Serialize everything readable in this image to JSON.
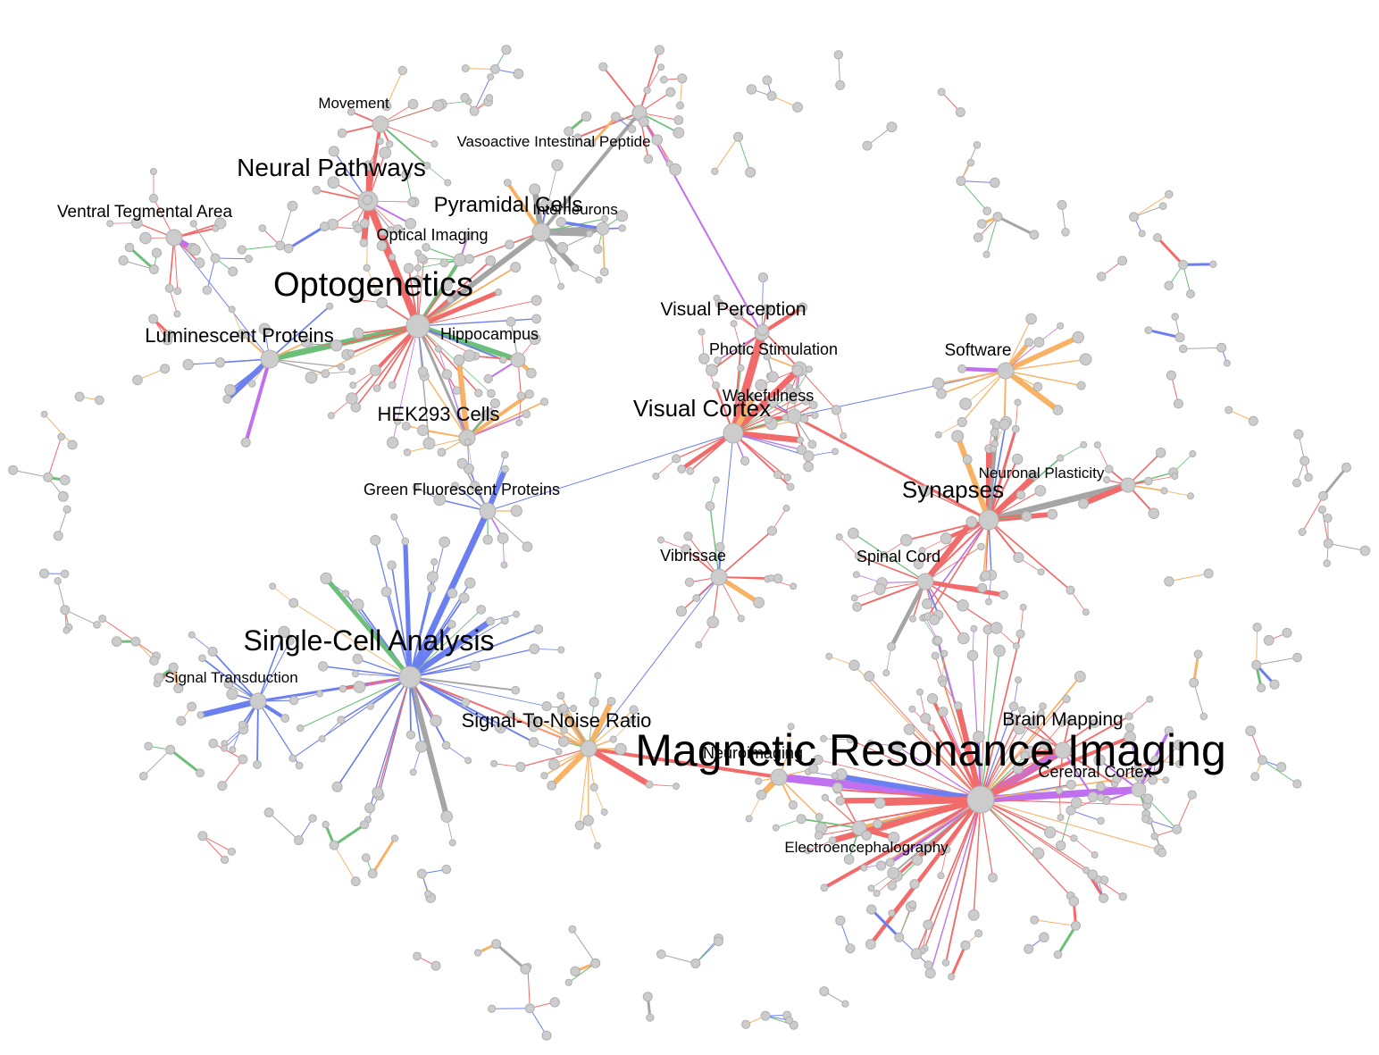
{
  "palette": {
    "red": "#f26b6b",
    "blue": "#6b7ff0",
    "green": "#6bbf78",
    "gray": "#a5a5a5",
    "orange": "#f7b266",
    "purple": "#c070ef",
    "node_fill": "#cccccc",
    "node_stroke": "#b0b0b0"
  },
  "hubs": [
    {
      "id": "mri",
      "label": "Magnetic Resonance Imaging",
      "size": "xl"
    },
    {
      "id": "opto",
      "label": "Optogenetics",
      "size": "l"
    },
    {
      "id": "single",
      "label": "Single-Cell Analysis",
      "size": "m"
    },
    {
      "id": "neural",
      "label": "Neural Pathways",
      "size": "m"
    },
    {
      "id": "vcortex",
      "label": "Visual Cortex",
      "size": "m"
    },
    {
      "id": "syn",
      "label": "Synapses",
      "size": "m"
    },
    {
      "id": "pyr",
      "label": "Pyramidal Cells",
      "size": "m"
    },
    {
      "id": "lum",
      "label": "Luminescent Proteins",
      "size": "ms"
    },
    {
      "id": "hek",
      "label": "HEK293 Cells",
      "size": "ms"
    },
    {
      "id": "snr",
      "label": "Signal-To-Noise Ratio",
      "size": "ms"
    },
    {
      "id": "brainmap",
      "label": "Brain Mapping",
      "size": "ms"
    },
    {
      "id": "vper",
      "label": "Visual Perception",
      "size": "ms"
    },
    {
      "id": "movement",
      "label": "Movement",
      "size": "s"
    },
    {
      "id": "vip",
      "label": "Vasoactive Intestinal Peptide",
      "size": "s"
    },
    {
      "id": "vta",
      "label": "Ventral Tegmental Area",
      "size": "s"
    },
    {
      "id": "inter",
      "label": "Interneurons",
      "size": "s"
    },
    {
      "id": "optimg",
      "label": "Optical Imaging",
      "size": "s"
    },
    {
      "id": "hippo",
      "label": "Hippocampus",
      "size": "s"
    },
    {
      "id": "photic",
      "label": "Photic Stimulation",
      "size": "s"
    },
    {
      "id": "soft",
      "label": "Software",
      "size": "s"
    },
    {
      "id": "wake",
      "label": "Wakefulness",
      "size": "s"
    },
    {
      "id": "plast",
      "label": "Neuronal Plasticity",
      "size": "s"
    },
    {
      "id": "gfp",
      "label": "Green Fluorescent Proteins",
      "size": "s"
    },
    {
      "id": "vib",
      "label": "Vibrissae",
      "size": "s"
    },
    {
      "id": "spinal",
      "label": "Spinal Cord",
      "size": "s"
    },
    {
      "id": "sigtrans",
      "label": "Signal Transduction",
      "size": "s"
    },
    {
      "id": "neuroimg",
      "label": "Neuroimaging",
      "size": "s"
    },
    {
      "id": "ccortex",
      "label": "Cerebral Cortex",
      "size": "s"
    },
    {
      "id": "eeg",
      "label": "Electroencephalography",
      "size": "s"
    }
  ]
}
